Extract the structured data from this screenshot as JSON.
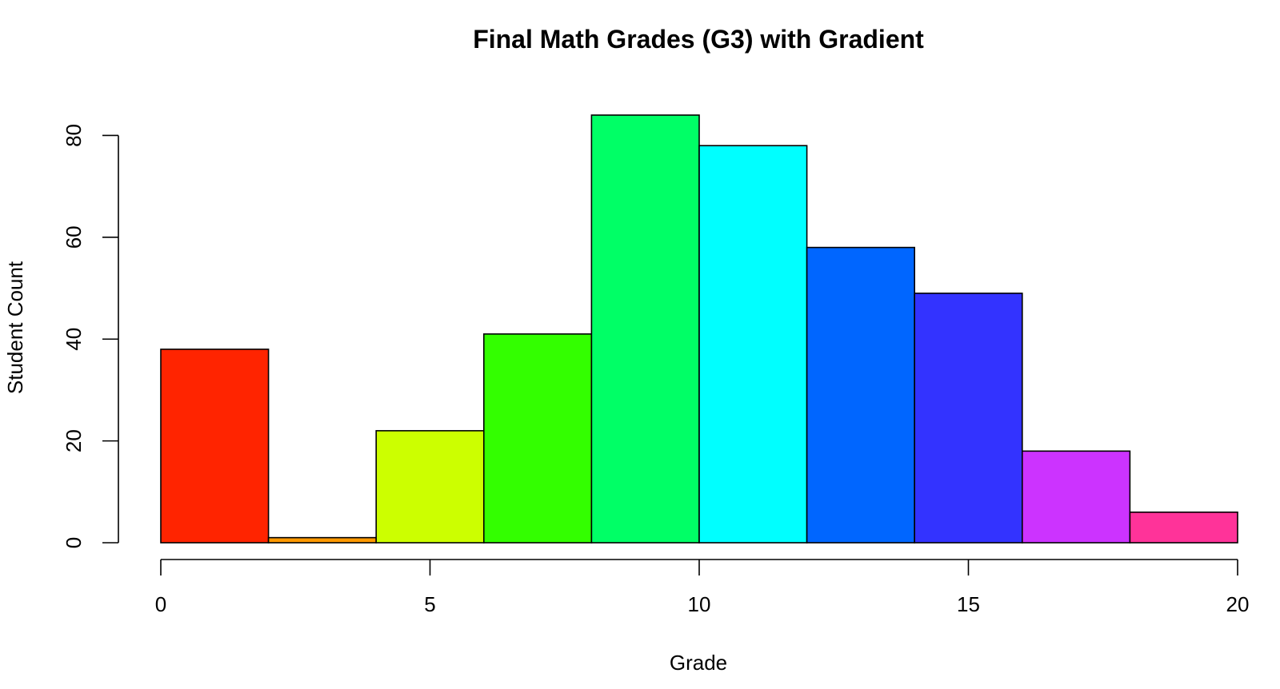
{
  "chart_data": {
    "type": "bar",
    "title": "Final Math Grades (G3) with Gradient",
    "xlabel": "Grade",
    "ylabel": "Student Count",
    "bin_edges": [
      0,
      2,
      4,
      6,
      8,
      10,
      12,
      14,
      16,
      18,
      20
    ],
    "values": [
      38,
      1,
      22,
      41,
      84,
      78,
      58,
      49,
      18,
      6
    ],
    "colors": [
      "#FF2400",
      "#FF9900",
      "#CCFF00",
      "#33FF00",
      "#00FF66",
      "#00FFFF",
      "#0066FF",
      "#3333FF",
      "#CC33FF",
      "#FF3399"
    ],
    "xlim": [
      0,
      20
    ],
    "ylim": [
      0,
      84
    ],
    "x_ticks": [
      0,
      5,
      10,
      15,
      20
    ],
    "y_ticks": [
      0,
      20,
      40,
      60,
      80
    ],
    "grid": false,
    "legend": "none"
  }
}
